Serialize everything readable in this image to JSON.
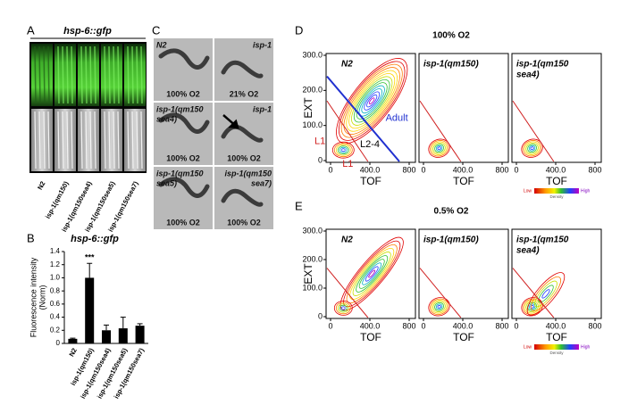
{
  "panel_a": {
    "label": "A",
    "title": "hsp-6::gfp",
    "strains": [
      "N2",
      "isp-1(qm150)",
      "isp-1(qm150sea4)",
      "isp-1(qm150sea5)",
      "isp-1(qm150sea7)"
    ]
  },
  "chart_data": {
    "type": "bar",
    "label": "B",
    "title": "hsp-6::gfp",
    "y_label": [
      "Fluorescence intensity",
      "(Norm)"
    ],
    "categories": [
      "N2",
      "isp-1(qm150)",
      "isp-1(qm150sea4)",
      "isp-1(qm150sea5)",
      "isp-1(qm150sea7)"
    ],
    "values": [
      0.07,
      1.0,
      0.2,
      0.23,
      0.27
    ],
    "errors": [
      0.01,
      0.22,
      0.08,
      0.17,
      0.03
    ],
    "color": "#000000",
    "significance": "***",
    "ylim": [
      0,
      1.4
    ],
    "yticks": [
      0,
      0.2,
      0.4,
      0.6,
      0.8,
      {
        "value": 1,
        "label": "1.0"
      },
      1.2,
      1.4
    ]
  },
  "panel_c": {
    "label": "C",
    "images": [
      {
        "strain": [
          "N2"
        ],
        "condition": "100% O2"
      },
      {
        "strain": [
          "isp-1"
        ],
        "condition": "21% O2"
      },
      {
        "strain": [
          "isp-1(qm150",
          "sea4)"
        ],
        "condition": "100% O2"
      },
      {
        "strain": [
          "isp-1"
        ],
        "condition": "100% O2"
      },
      {
        "strain": [
          "isp-1(qm150",
          "sea5)"
        ],
        "condition": "100% O2"
      },
      {
        "strain": [
          "isp-1(qm150",
          "sea7)"
        ],
        "condition": "100% O2"
      }
    ]
  },
  "panel_d": {
    "label": "D",
    "title": "100% O2",
    "plots": [
      {
        "name": [
          "N2"
        ]
      },
      {
        "name": [
          "isp-1(qm150)"
        ]
      },
      {
        "name": [
          "isp-1(qm150",
          "sea4)"
        ]
      }
    ],
    "adult": "Adult",
    "l1": "L1",
    "l2_4": "L2-4"
  },
  "panel_e": {
    "label": "E",
    "title": "0.5% O2",
    "plots": [
      {
        "name": [
          "N2"
        ]
      },
      {
        "name": [
          "isp-1(qm150)"
        ]
      },
      {
        "name": [
          "isp-1(qm150",
          "sea4)"
        ]
      }
    ]
  },
  "density_axes": {
    "x_label": "TOF",
    "y_label": "EXT",
    "xlim": [
      0,
      800
    ],
    "ylim": [
      0,
      300
    ],
    "xticks": [
      0,
      {
        "value": 400,
        "label": "400.0"
      },
      800
    ],
    "yticks": [
      0,
      {
        "value": 100,
        "label": "100.0"
      },
      {
        "value": 200,
        "label": "200.0"
      },
      {
        "value": 300,
        "label": "300.0"
      }
    ]
  },
  "colorbar": {
    "low": "Low",
    "high": "High",
    "label": "Density"
  }
}
